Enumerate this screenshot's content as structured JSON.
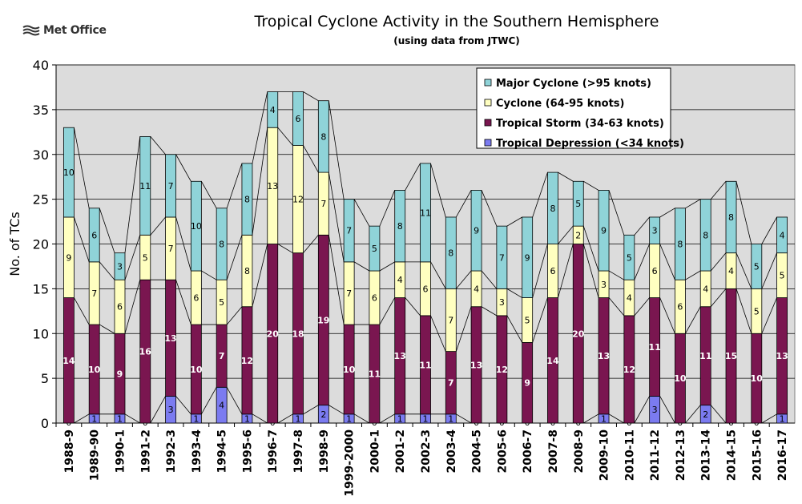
{
  "brand": {
    "name": "Met Office"
  },
  "chart_data": {
    "type": "bar",
    "stacked": true,
    "title": "Tropical Cyclone Activity in the Southern Hemisphere",
    "subtitle": "(using data from JTWC)",
    "xlabel": "",
    "ylabel": "No. of TCs",
    "ylim": [
      0,
      40
    ],
    "yticks": [
      0,
      5,
      10,
      15,
      20,
      25,
      30,
      35,
      40
    ],
    "grid": true,
    "legend_position": "top-right",
    "categories": [
      "1988-9",
      "1989-90",
      "1990-1",
      "1991-2",
      "1992-3",
      "1993-4",
      "1994-5",
      "1995-6",
      "1996-7",
      "1997-8",
      "1998-9",
      "1999-2000",
      "2000-1",
      "2001-2",
      "2002-3",
      "2003-4",
      "2004-5",
      "2005-6",
      "2006-7",
      "2007-8",
      "2008-9",
      "2009-10",
      "2010-11",
      "2011-12",
      "2012-13",
      "2013-14",
      "2014-15",
      "2015-16",
      "2016-17"
    ],
    "series": [
      {
        "name": "Tropical Depression (<34 knots)",
        "color": "#7b7bf0",
        "values": [
          0,
          1,
          1,
          0,
          3,
          1,
          4,
          1,
          0,
          1,
          2,
          1,
          0,
          1,
          1,
          1,
          0,
          0,
          0,
          0,
          0,
          1,
          0,
          3,
          0,
          2,
          0,
          0,
          1
        ]
      },
      {
        "name": "Tropical Storm (34-63 knots)",
        "color": "#7a1650",
        "values": [
          14,
          10,
          9,
          16,
          13,
          10,
          7,
          12,
          20,
          18,
          19,
          10,
          11,
          13,
          11,
          7,
          13,
          12,
          9,
          14,
          20,
          13,
          12,
          11,
          10,
          11,
          15,
          10,
          13
        ]
      },
      {
        "name": "Cyclone (64-95 knots)",
        "color": "#ffffc0",
        "values": [
          9,
          7,
          6,
          5,
          7,
          6,
          5,
          8,
          13,
          12,
          7,
          7,
          6,
          4,
          6,
          7,
          4,
          3,
          5,
          6,
          2,
          3,
          4,
          6,
          6,
          4,
          4,
          5,
          5
        ]
      },
      {
        "name": "Major Cyclone (>95 knots)",
        "color": "#8fd3d8",
        "values": [
          10,
          6,
          3,
          11,
          7,
          10,
          8,
          8,
          4,
          6,
          8,
          7,
          5,
          8,
          11,
          8,
          9,
          7,
          9,
          8,
          5,
          9,
          5,
          3,
          8,
          8,
          8,
          5,
          4
        ]
      }
    ]
  }
}
